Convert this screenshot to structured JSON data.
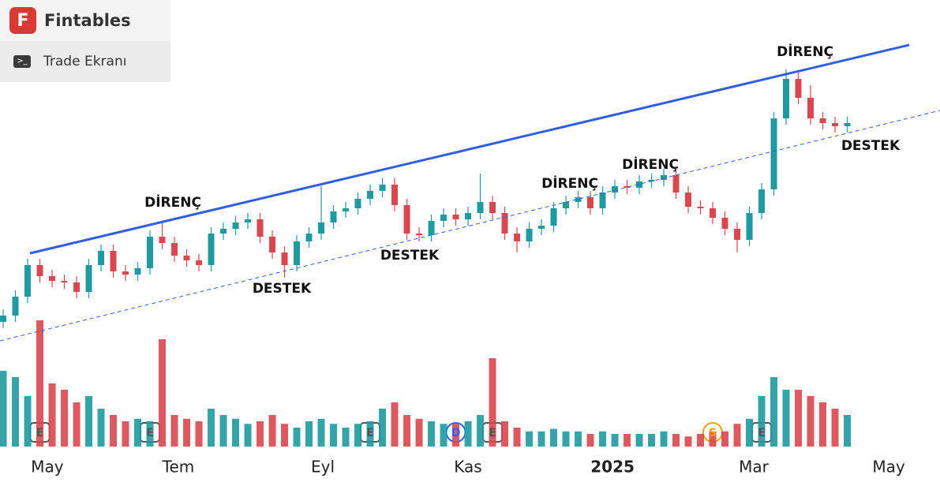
{
  "app": {
    "brand": "Fintables",
    "logo_letter": "F",
    "menu_item": "Trade Ekranı"
  },
  "chart_data": {
    "type": "candlestick",
    "xlim": [
      -0.26,
      76.58
    ],
    "ylim": [
      0,
      100
    ],
    "volume_lim": [
      0,
      100
    ],
    "xticks": [
      {
        "value": 3.61,
        "label": "May"
      },
      {
        "value": 14.32,
        "label": "Tem"
      },
      {
        "value": 26.13,
        "label": "Eyl"
      },
      {
        "value": 38,
        "label": "Kas"
      },
      {
        "value": 49.81,
        "label": "2025"
      },
      {
        "value": 61.35,
        "label": "Mar"
      },
      {
        "value": 72.39,
        "label": "May"
      }
    ],
    "up_color": "#1e9aa0",
    "down_color": "#d9474f",
    "open": [
      8,
      10,
      16,
      26,
      22.5,
      21,
      20.5,
      17.5,
      26,
      30.5,
      24,
      23,
      25,
      35,
      33,
      29,
      27.5,
      26,
      36,
      37.5,
      39.5,
      40.5,
      35,
      30,
      26,
      33.5,
      36,
      39.5,
      43,
      44,
      47,
      49.5,
      51.5,
      45,
      36,
      35.5,
      40,
      42,
      40.5,
      42.5,
      46,
      42.5,
      36,
      33.5,
      37.5,
      38.5,
      44,
      46,
      47.5,
      44,
      49,
      51,
      50.5,
      52.5,
      53,
      54.5,
      49,
      44.5,
      44,
      41,
      37.5,
      34,
      42.5,
      50,
      72.5,
      85,
      79,
      72.5,
      71,
      70
    ],
    "high": [
      12,
      18,
      28,
      28,
      24.5,
      23,
      22.5,
      28,
      32.5,
      32.5,
      26,
      27,
      37,
      40,
      35,
      31,
      29.5,
      38,
      39.5,
      41.5,
      42.5,
      42.5,
      37,
      32,
      35.5,
      38,
      51,
      45,
      46,
      49,
      51.5,
      53.5,
      53.5,
      47,
      38,
      42,
      44,
      44,
      44.5,
      55,
      48,
      44.5,
      38,
      39.5,
      40.5,
      46,
      48,
      49.5,
      49.5,
      51,
      53,
      53,
      54.5,
      55,
      56.5,
      56.5,
      51,
      46.5,
      46,
      43,
      39.5,
      44.5,
      52,
      74.5,
      88,
      87,
      83,
      74.5,
      73,
      73
    ],
    "low": [
      6,
      8,
      14,
      20.5,
      19,
      18.5,
      15.5,
      15.5,
      24,
      22,
      21,
      21,
      23,
      31,
      27,
      25.5,
      24,
      24,
      34,
      35.5,
      37.5,
      33,
      28,
      22,
      24,
      31.5,
      34,
      37.5,
      41,
      42,
      45,
      47.5,
      43,
      34,
      33.5,
      33.5,
      38,
      38.5,
      38.5,
      40.5,
      40.5,
      34,
      30,
      31.5,
      35.5,
      36.5,
      42,
      44,
      42,
      42,
      47,
      48.5,
      48.5,
      50.5,
      51,
      47,
      42.5,
      42,
      39,
      35.5,
      30,
      32,
      40.5,
      48,
      70.5,
      77,
      70.5,
      69,
      68,
      68
    ],
    "close": [
      10,
      16,
      26,
      22.5,
      21,
      20.5,
      17.5,
      26,
      30.5,
      24,
      23,
      25,
      35,
      33,
      29,
      27.5,
      26,
      36,
      37.5,
      39.5,
      40.5,
      35,
      30,
      26,
      33.5,
      36,
      39.5,
      43,
      44,
      47,
      49.5,
      51.5,
      45,
      36,
      35.5,
      40,
      42,
      40.5,
      42.5,
      46,
      42.5,
      36,
      33.5,
      37.5,
      38.5,
      44,
      46,
      47.5,
      44,
      49,
      51,
      50.5,
      52.5,
      53,
      54.5,
      49,
      44.5,
      44,
      41,
      37.5,
      34,
      42.5,
      50,
      72.5,
      85,
      79,
      72.5,
      71,
      70,
      71
    ],
    "volume": [
      60,
      55,
      40,
      100,
      50,
      45,
      35,
      40,
      30,
      25,
      20,
      22,
      20,
      85,
      25,
      22,
      20,
      30,
      25,
      22,
      18,
      20,
      25,
      18,
      15,
      20,
      22,
      18,
      15,
      18,
      20,
      30,
      35,
      25,
      22,
      20,
      18,
      18,
      20,
      25,
      70,
      20,
      15,
      12,
      12,
      14,
      12,
      12,
      10,
      12,
      10,
      10,
      10,
      10,
      12,
      10,
      8,
      10,
      12,
      12,
      18,
      22,
      40,
      55,
      45,
      45,
      40,
      35,
      30,
      25
    ],
    "events": [
      {
        "index": 3,
        "label": "E",
        "style": "box",
        "color": "#555555"
      },
      {
        "index": 12,
        "label": "E",
        "style": "box",
        "color": "#555555"
      },
      {
        "index": 30,
        "label": "E",
        "style": "box",
        "color": "#555555"
      },
      {
        "index": 37,
        "label": "D",
        "style": "circle",
        "color": "#2962ff"
      },
      {
        "index": 40,
        "label": "E",
        "style": "box",
        "color": "#555555"
      },
      {
        "index": 58,
        "label": "S",
        "style": "circle",
        "color": "#f0a30a"
      },
      {
        "index": 62,
        "label": "E",
        "style": "box",
        "color": "#555555"
      }
    ],
    "annotations": [
      "DİRENÇ",
      "DESTEK",
      "DESTEK",
      "DİRENÇ",
      "DİRENÇ",
      "DİRENÇ",
      "DESTEK"
    ]
  }
}
